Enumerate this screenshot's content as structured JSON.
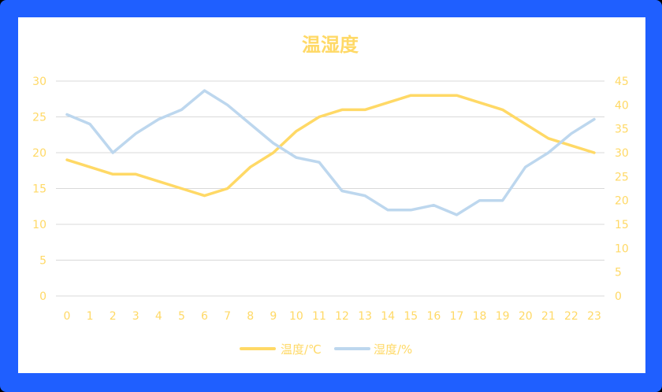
{
  "chart_data": {
    "type": "line",
    "title": "温湿度",
    "categories": [
      "0",
      "1",
      "2",
      "3",
      "4",
      "5",
      "6",
      "7",
      "8",
      "9",
      "10",
      "11",
      "12",
      "13",
      "14",
      "15",
      "16",
      "17",
      "18",
      "19",
      "20",
      "21",
      "22",
      "23"
    ],
    "y_left": {
      "min": 0,
      "max": 30,
      "ticks": [
        "0",
        "5",
        "10",
        "15",
        "20",
        "25",
        "30"
      ]
    },
    "y_right": {
      "min": 0,
      "max": 45,
      "ticks": [
        "0",
        "5",
        "10",
        "15",
        "20",
        "25",
        "30",
        "35",
        "40",
        "45"
      ]
    },
    "series": [
      {
        "name": "温度/℃",
        "axis": "left",
        "color": "#ffd966",
        "values": [
          19,
          18,
          17,
          17,
          16,
          15,
          14,
          15,
          18,
          20,
          23,
          25,
          26,
          26,
          27,
          28,
          28,
          28,
          27,
          26,
          24,
          22,
          21,
          20
        ]
      },
      {
        "name": "湿度/%",
        "axis": "right",
        "color": "#bdd7ee",
        "values": [
          38,
          36,
          30,
          34,
          37,
          39,
          43,
          40,
          36,
          32,
          29,
          28,
          22,
          21,
          18,
          18,
          19,
          17,
          20,
          20,
          27,
          30,
          34,
          37
        ]
      }
    ],
    "grid": true,
    "legend": "bottom",
    "text_color": "#ffd966",
    "grid_color": "#d9d9d9"
  }
}
